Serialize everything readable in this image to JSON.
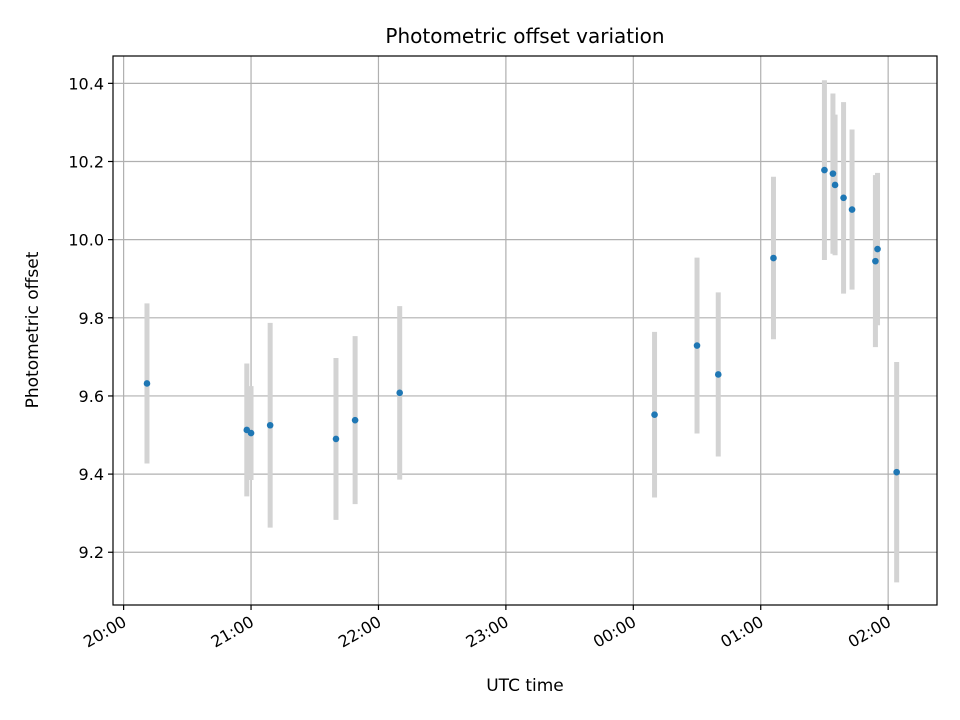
{
  "chart_data": {
    "type": "scatter",
    "title": "Photometric offset variation",
    "xlabel": "UTC time",
    "ylabel": "Photometric offset",
    "grid": true,
    "x_axis_kind": "time",
    "xlim_minutes_since_start": [
      -5,
      383
    ],
    "ylim": [
      9.065,
      10.47
    ],
    "x_ticks": [
      {
        "label": "20:00",
        "minutes": 0
      },
      {
        "label": "21:00",
        "minutes": 60
      },
      {
        "label": "22:00",
        "minutes": 120
      },
      {
        "label": "23:00",
        "minutes": 180
      },
      {
        "label": "00:00",
        "minutes": 240
      },
      {
        "label": "01:00",
        "minutes": 300
      },
      {
        "label": "02:00",
        "minutes": 360
      }
    ],
    "y_ticks": [
      9.2,
      9.4,
      9.6,
      9.8,
      10.0,
      10.2,
      10.4
    ],
    "colors": {
      "point": "#1f77b4",
      "errorbar": "#d3d3d3",
      "grid": "#b0b0b0"
    },
    "series": [
      {
        "points": [
          {
            "t": "20:11",
            "y": 9.632,
            "err": 0.205
          },
          {
            "t": "20:58",
            "y": 9.513,
            "err": 0.17
          },
          {
            "t": "21:00",
            "y": 9.505,
            "err": 0.12
          },
          {
            "t": "21:09",
            "y": 9.525,
            "err": 0.262
          },
          {
            "t": "21:40",
            "y": 9.49,
            "err": 0.207
          },
          {
            "t": "21:49",
            "y": 9.538,
            "err": 0.215
          },
          {
            "t": "22:10",
            "y": 9.608,
            "err": 0.222
          },
          {
            "t": "00:10",
            "y": 9.552,
            "err": 0.212
          },
          {
            "t": "00:30",
            "y": 9.729,
            "err": 0.225
          },
          {
            "t": "00:40",
            "y": 9.655,
            "err": 0.21
          },
          {
            "t": "01:06",
            "y": 9.953,
            "err": 0.208
          },
          {
            "t": "01:30",
            "y": 10.178,
            "err": 0.23
          },
          {
            "t": "01:34",
            "y": 10.169,
            "err": 0.205
          },
          {
            "t": "01:35",
            "y": 10.14,
            "err": 0.18
          },
          {
            "t": "01:39",
            "y": 10.107,
            "err": 0.245
          },
          {
            "t": "01:43",
            "y": 10.077,
            "err": 0.205
          },
          {
            "t": "01:54",
            "y": 9.945,
            "err": 0.22
          },
          {
            "t": "01:55",
            "y": 9.976,
            "err": 0.195
          },
          {
            "t": "02:04",
            "y": 9.405,
            "err": 0.282
          }
        ]
      }
    ]
  }
}
